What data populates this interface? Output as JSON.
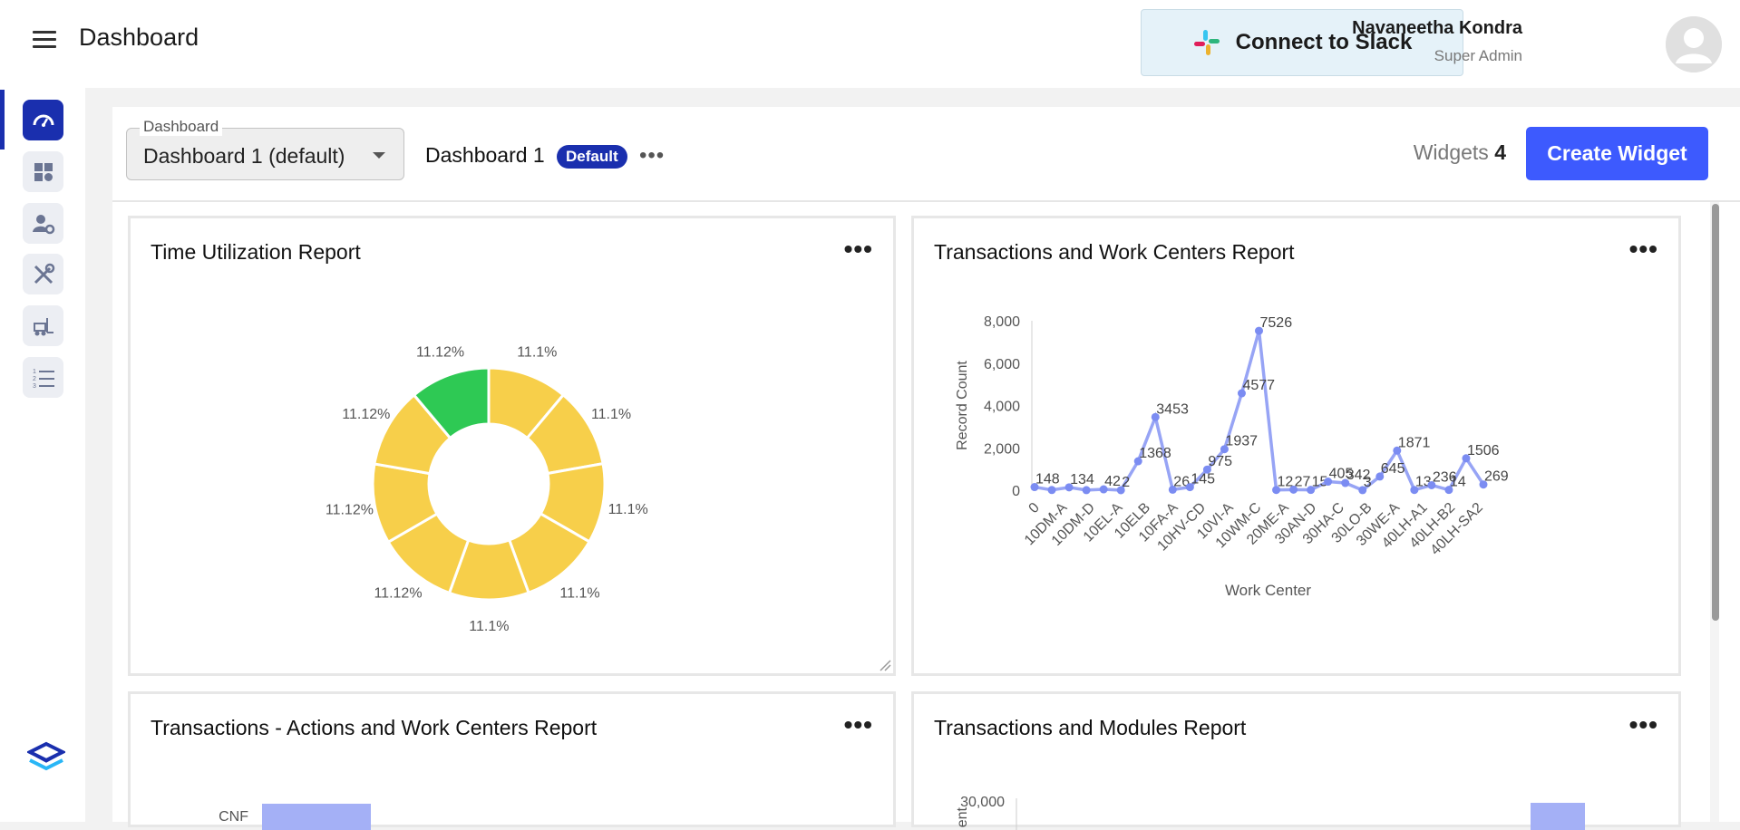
{
  "header": {
    "title": "Dashboard",
    "slack_label": "Connect to Slack",
    "user_name": "Navaneetha Kondra",
    "user_role": "Super Admin"
  },
  "sidebar": {
    "items": [
      {
        "name": "gauge-icon",
        "active": true
      },
      {
        "name": "widgets-icon",
        "active": false
      },
      {
        "name": "user-settings-icon",
        "active": false
      },
      {
        "name": "tools-icon",
        "active": false
      },
      {
        "name": "forklift-icon",
        "active": false
      },
      {
        "name": "list-icon",
        "active": false
      }
    ]
  },
  "toolbar": {
    "select_label": "Dashboard",
    "select_value": "Dashboard 1 (default)",
    "dashboard_name": "Dashboard 1",
    "default_badge": "Default",
    "widgets_label": "Widgets",
    "widgets_count": "4",
    "create_label": "Create Widget",
    "more_label": "•••"
  },
  "widgets": {
    "w1": {
      "title": "Time Utilization Report",
      "more": "•••"
    },
    "w2": {
      "title": "Transactions and Work Centers Report",
      "more": "•••"
    },
    "w3": {
      "title": "Transactions - Actions and Work Centers Report",
      "more": "•••"
    },
    "w4": {
      "title": "Transactions and Modules Report",
      "more": "•••"
    }
  },
  "colors": {
    "accent": "#3d5afe",
    "nav_active": "#1a2fae",
    "donut_yellow": "#f7cf4a",
    "donut_green": "#2ec954",
    "line": "#97a4f5",
    "point": "#7b8cf2"
  },
  "chart_data": [
    {
      "type": "pie",
      "title": "Time Utilization Report",
      "donut": true,
      "labels": [
        "11.1%",
        "11.1%",
        "11.1%",
        "11.1%",
        "11.1%",
        "11.12%",
        "11.12%",
        "11.12%",
        "11.12%"
      ],
      "values": [
        11.1,
        11.1,
        11.1,
        11.1,
        11.1,
        11.12,
        11.12,
        11.12,
        11.12
      ],
      "colors": [
        "#f7cf4a",
        "#f7cf4a",
        "#f7cf4a",
        "#f7cf4a",
        "#f7cf4a",
        "#f7cf4a",
        "#f7cf4a",
        "#f7cf4a",
        "#2ec954"
      ]
    },
    {
      "type": "line",
      "title": "Transactions and Work Centers Report",
      "xlabel": "Work Center",
      "ylabel": "Record Count",
      "ylim": [
        0,
        8000
      ],
      "yticks": [
        0,
        2000,
        4000,
        6000,
        8000
      ],
      "ytick_labels": [
        "0",
        "2,000",
        "4,000",
        "6,000",
        "8,000"
      ],
      "xtick_labels": [
        "0",
        "10DM-A",
        "10DM-D",
        "10EL-A",
        "10ELB",
        "10FA-A",
        "10HV-CD",
        "10VI-A",
        "10WM-C",
        "20ME-A",
        "30AN-D",
        "30HA-C",
        "30LO-B",
        "30WE-A",
        "40LH-A1",
        "40LH-B2",
        "40LH-SA2"
      ],
      "values": [
        148,
        10,
        134,
        5,
        42,
        2,
        1368,
        3453,
        26,
        145,
        975,
        1937,
        4577,
        7526,
        12,
        27,
        15,
        405,
        342,
        3,
        645,
        1871,
        13,
        236,
        14,
        1506,
        269
      ],
      "point_labels": [
        "148",
        "",
        "134",
        "",
        "42",
        "2",
        "1368",
        "3453",
        "26",
        "145",
        "975",
        "1937",
        "4577",
        "7526",
        "12",
        "27",
        "15",
        "405",
        "342",
        "3",
        "645",
        "1871",
        "13",
        "236",
        "14",
        "1506",
        "269"
      ]
    },
    {
      "type": "bar",
      "title": "Transactions - Actions and Work Centers Report",
      "categories": [
        "CNF"
      ]
    },
    {
      "type": "bar",
      "title": "Transactions and Modules Report",
      "ytick_labels": [
        "30,000"
      ],
      "ylabel": "ent"
    }
  ]
}
